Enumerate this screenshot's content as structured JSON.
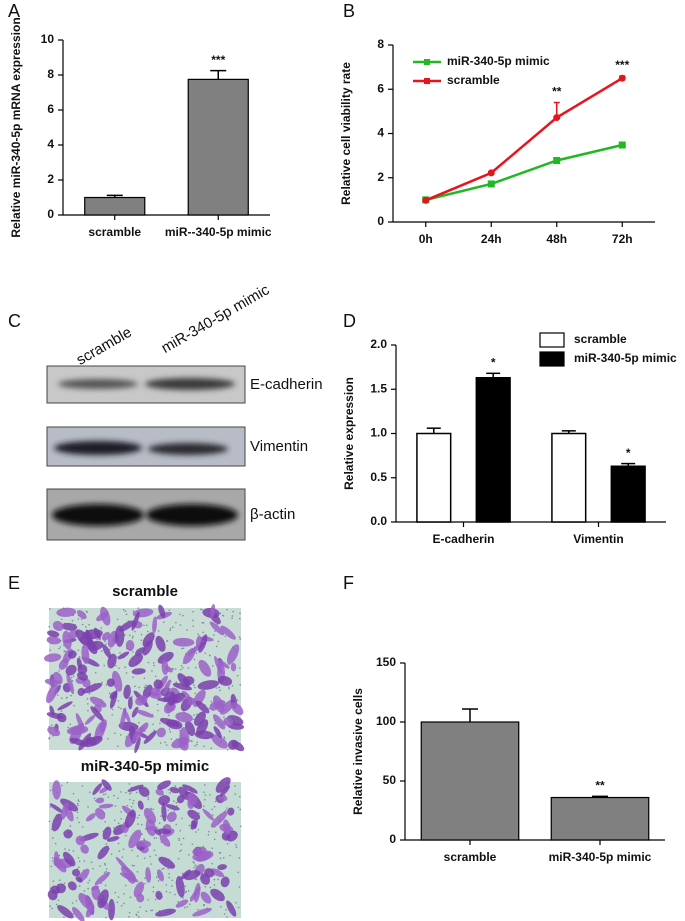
{
  "chart_data": [
    {
      "type": "bar",
      "panel": "A",
      "y_label": "Relative miR-340-5p mRNA expression",
      "categories": [
        "scramble",
        "miR--340-5p mimic"
      ],
      "values": [
        1,
        7.75
      ],
      "errors": [
        0.12,
        0.5
      ],
      "significance": [
        null,
        "***"
      ],
      "color": "#808080",
      "ylim": [
        0,
        10
      ],
      "yticks": [
        0,
        2,
        4,
        6,
        8,
        10
      ]
    },
    {
      "type": "line",
      "panel": "B",
      "y_label": "Relative cell viability rate",
      "categories": [
        "0h",
        "24h",
        "48h",
        "72h"
      ],
      "series": [
        {
          "name": "miR-340-5p mimic",
          "color": "#22b822",
          "marker": "square",
          "values": [
            1.0,
            1.72,
            2.78,
            3.48
          ],
          "errors": [
            0.05,
            0.05,
            0.08,
            0.05
          ],
          "significance": [
            null,
            null,
            null,
            null
          ]
        },
        {
          "name": "scramble",
          "color": "#e8141c",
          "marker": "circle",
          "values": [
            0.98,
            2.22,
            4.72,
            6.5
          ],
          "errors": [
            0.05,
            0.05,
            0.68,
            0.1
          ],
          "significance": [
            null,
            null,
            "**",
            "***"
          ]
        }
      ],
      "legend": "top-left",
      "ylim": [
        0,
        8
      ],
      "yticks": [
        0,
        2,
        4,
        6,
        8
      ]
    },
    {
      "type": "grouped_bar",
      "panel": "D",
      "y_label": "Relative expression",
      "categories": [
        "E-cadherin",
        "Vimentin"
      ],
      "series": [
        {
          "name": "scramble",
          "color": "#ffffff",
          "values": [
            1.0,
            1.0
          ],
          "errors": [
            0.06,
            0.03
          ],
          "significance": [
            null,
            null
          ]
        },
        {
          "name": "miR-340-5p mimic",
          "color": "#000000",
          "values": [
            1.63,
            0.63
          ],
          "errors": [
            0.05,
            0.03
          ],
          "significance": [
            "*",
            "*"
          ]
        }
      ],
      "legend": "top-right",
      "ylim": [
        0,
        2.0
      ],
      "yticks": [
        {
          "value": 0,
          "label": "0.0"
        },
        {
          "value": 0.5,
          "label": "0.5"
        },
        {
          "value": 1,
          "label": "1.0"
        },
        {
          "value": 1.5,
          "label": "1.5"
        },
        {
          "value": 2,
          "label": "2.0"
        }
      ]
    },
    {
      "type": "bar",
      "panel": "F",
      "y_label": "Relative invasive cells",
      "categories": [
        "scramble",
        "miR-340-5p mimic"
      ],
      "values": [
        100,
        36
      ],
      "errors": [
        11,
        1
      ],
      "significance": [
        null,
        "**"
      ],
      "color": "#808080",
      "ylim": [
        0,
        150
      ],
      "yticks": [
        0,
        50,
        100,
        150
      ]
    }
  ],
  "blot": {
    "panel": "C",
    "lanes": [
      "scramble",
      "miR-340-5p mimic"
    ],
    "proteins": [
      "E-cadherin",
      "Vimentin",
      "β-actin"
    ]
  },
  "micrographs": {
    "panel": "E",
    "labels": [
      "scramble",
      "miR-340-5p mimic"
    ]
  }
}
